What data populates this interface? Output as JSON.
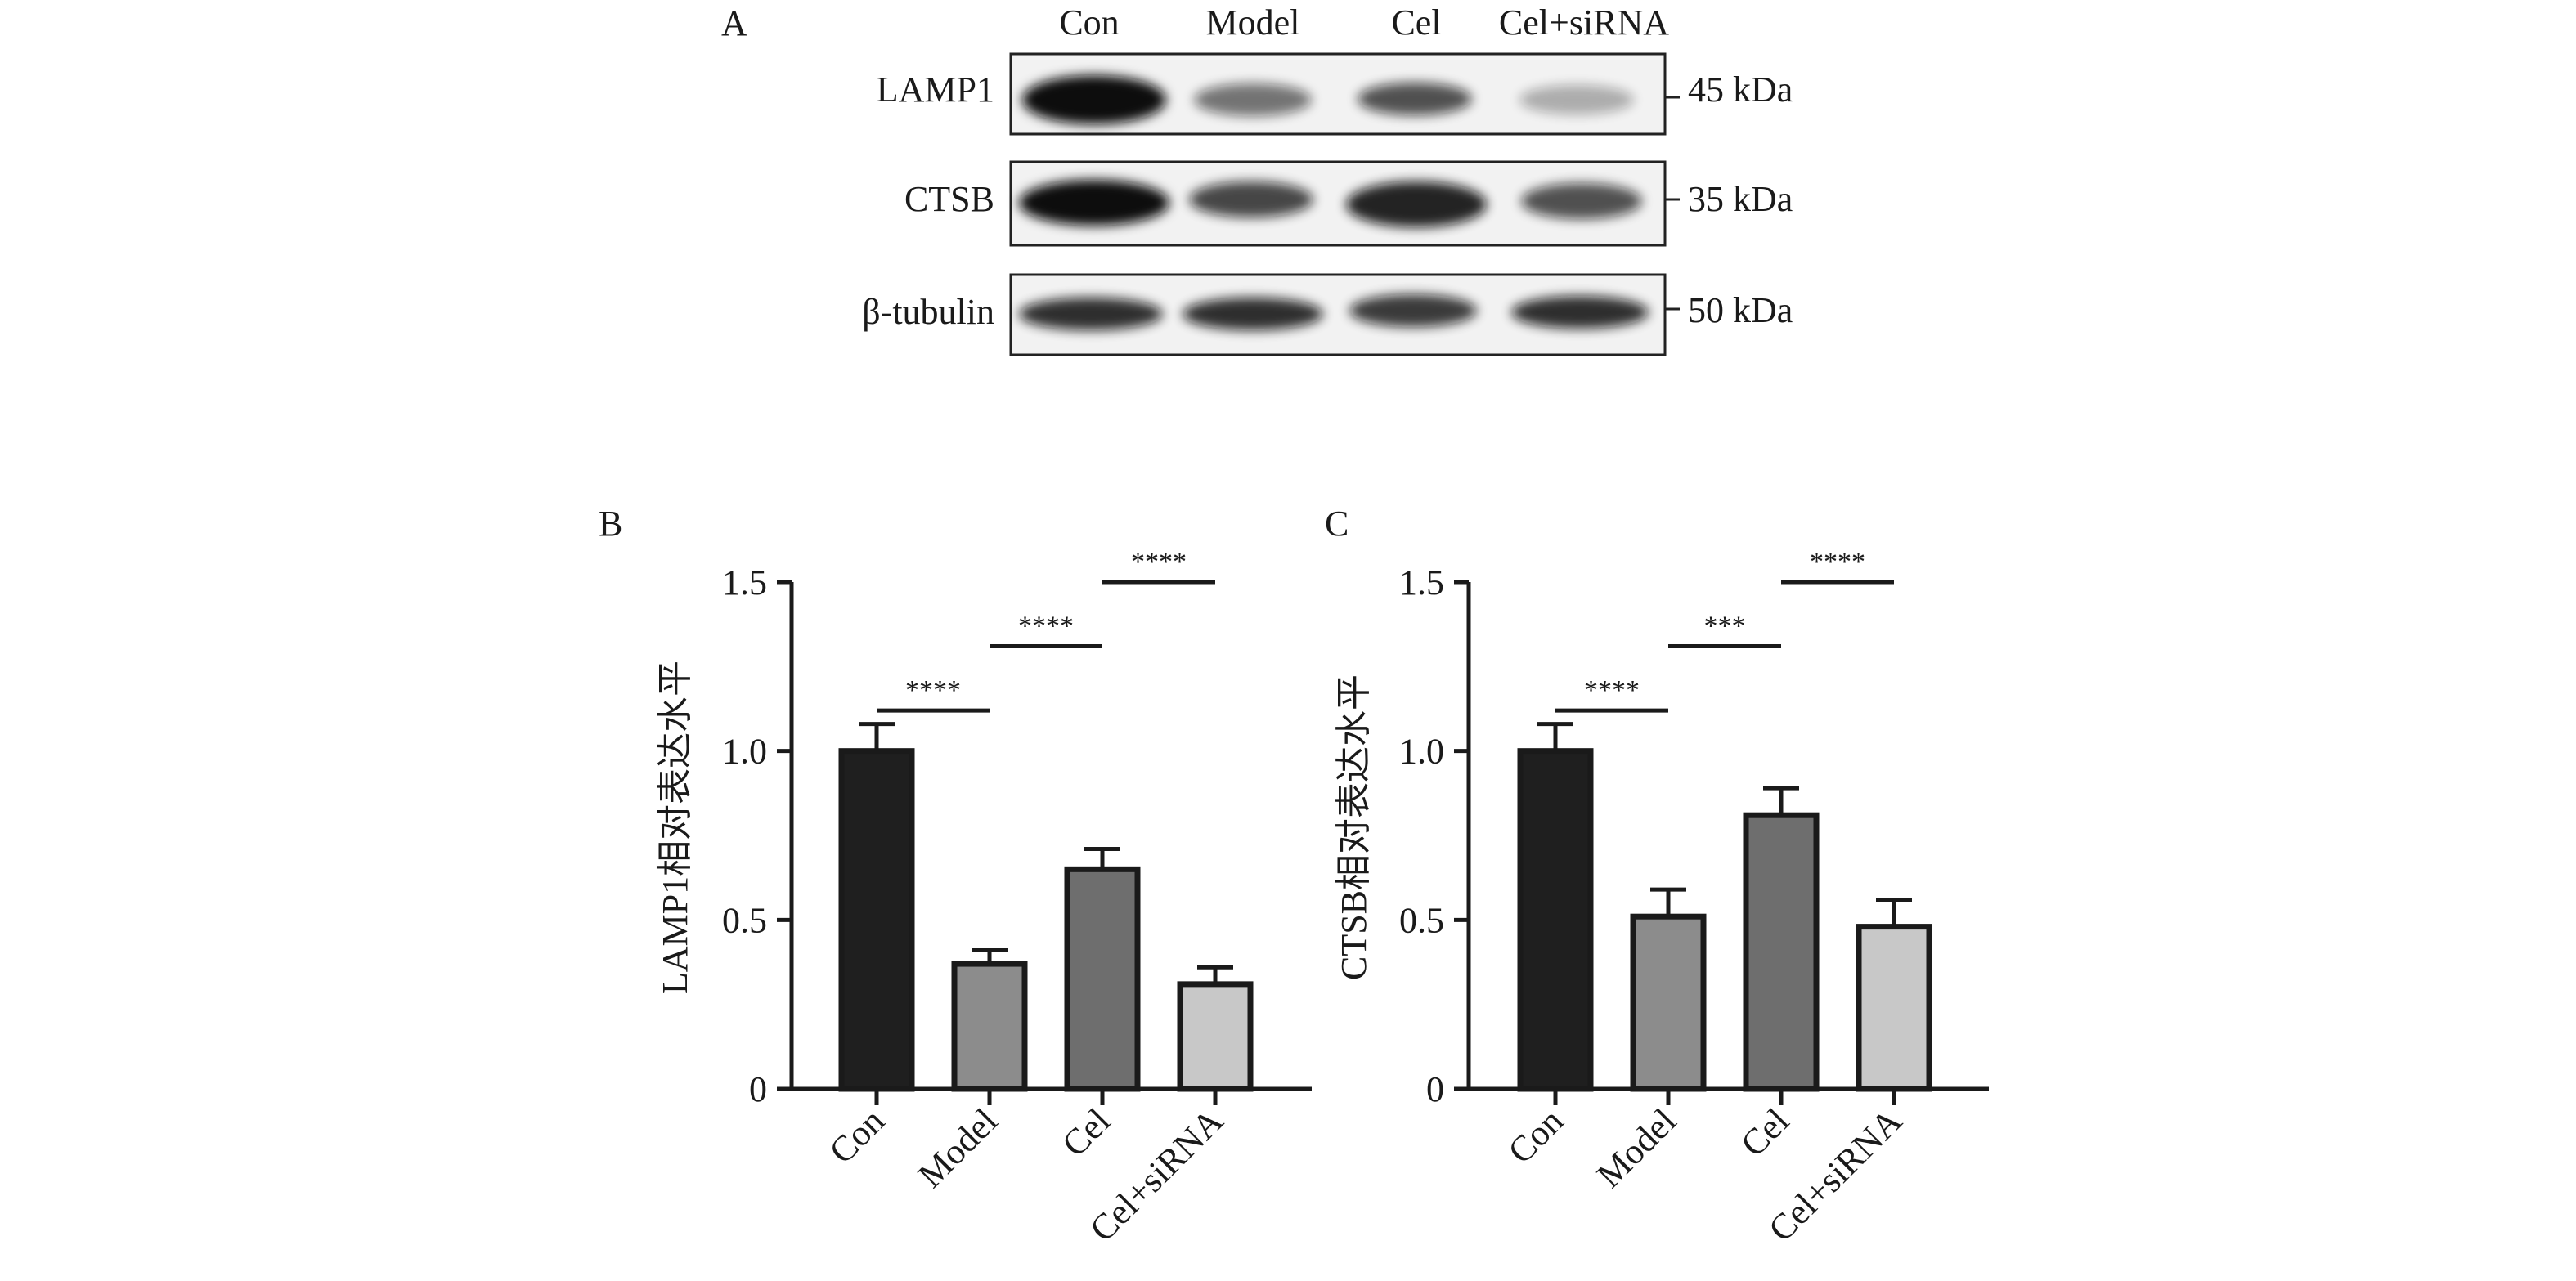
{
  "panel_a": {
    "label": "A",
    "lanes": [
      "Con",
      "Model",
      "Cel",
      "Cel+siRNA"
    ],
    "blots": [
      {
        "protein": "LAMP1",
        "size": "45 kDa",
        "band_intensity": [
          1.0,
          0.55,
          0.7,
          0.3
        ]
      },
      {
        "protein": "CTSB",
        "size": "35 kDa",
        "band_intensity": [
          1.0,
          0.75,
          0.9,
          0.7
        ]
      },
      {
        "protein": "β-tubulin",
        "size": "50 kDa",
        "band_intensity": [
          0.85,
          0.85,
          0.8,
          0.85
        ]
      }
    ]
  },
  "chart_data": [
    {
      "type": "bar",
      "panel_label": "B",
      "categories": [
        "Con",
        "Model",
        "Cel",
        "Cel+siRNA"
      ],
      "values": [
        1.0,
        0.37,
        0.65,
        0.31
      ],
      "errors": [
        0.08,
        0.04,
        0.06,
        0.05
      ],
      "ylabel": "LAMP1相对表达水平",
      "ylim": [
        0,
        1.5
      ],
      "yticks": [
        0,
        0.5,
        1.0,
        1.5
      ],
      "ytick_labels": [
        "0",
        "0.5",
        "1.0",
        "1.5"
      ],
      "bar_colors": [
        "#1f1f1f",
        "#8c8c8c",
        "#6e6e6e",
        "#c8c8c8"
      ],
      "significance": [
        {
          "from": 0,
          "to": 1,
          "y": 1.12,
          "label": "****"
        },
        {
          "from": 1,
          "to": 2,
          "y": 1.31,
          "label": "****"
        },
        {
          "from": 2,
          "to": 3,
          "y": 1.5,
          "label": "****"
        }
      ]
    },
    {
      "type": "bar",
      "panel_label": "C",
      "categories": [
        "Con",
        "Model",
        "Cel",
        "Cel+siRNA"
      ],
      "values": [
        1.0,
        0.51,
        0.81,
        0.48
      ],
      "errors": [
        0.08,
        0.08,
        0.08,
        0.08
      ],
      "ylabel": "CTSB相对表达水平",
      "ylim": [
        0,
        1.5
      ],
      "yticks": [
        0,
        0.5,
        1.0,
        1.5
      ],
      "ytick_labels": [
        "0",
        "0.5",
        "1.0",
        "1.5"
      ],
      "bar_colors": [
        "#1f1f1f",
        "#8c8c8c",
        "#6e6e6e",
        "#c8c8c8"
      ],
      "significance": [
        {
          "from": 0,
          "to": 1,
          "y": 1.12,
          "label": "****"
        },
        {
          "from": 1,
          "to": 2,
          "y": 1.31,
          "label": "***"
        },
        {
          "from": 2,
          "to": 3,
          "y": 1.5,
          "label": "****"
        }
      ]
    }
  ]
}
